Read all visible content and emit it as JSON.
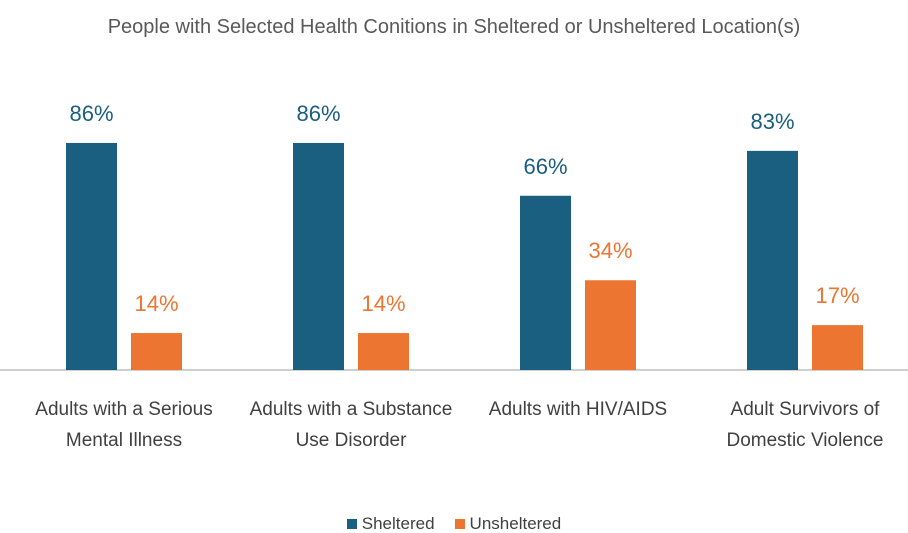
{
  "chart_data": {
    "type": "bar",
    "title": "People with Selected Health Conitions in Sheltered or Unsheltered Location(s)",
    "categories": [
      "Adults with a Serious Mental Illness",
      "Adults with a Substance Use Disorder",
      "Adults with HIV/AIDS",
      "Adult Survivors of Domestic Violence"
    ],
    "series": [
      {
        "name": "Sheltered",
        "color": "#1a5e80",
        "values": [
          86,
          86,
          66,
          83
        ],
        "value_labels": [
          "86%",
          "86%",
          "66%",
          "83%"
        ]
      },
      {
        "name": "Unsheltered",
        "color": "#ed7532",
        "values": [
          14,
          14,
          34,
          17
        ],
        "value_labels": [
          "14%",
          "14%",
          "34%",
          "17%"
        ]
      }
    ],
    "legend": "bottom"
  }
}
